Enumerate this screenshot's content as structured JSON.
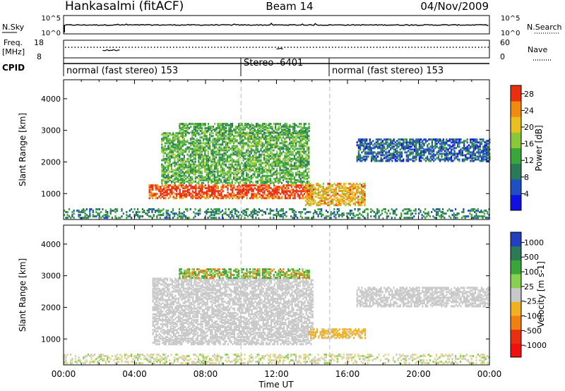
{
  "header": {
    "station": "Hankasalmi (fitACF)",
    "beam": "Beam 14",
    "date": "04/Nov/2009"
  },
  "noise_panel": {
    "left_label": "N.Sky",
    "right_label": "N.Search",
    "left_ticks": [
      "10^5",
      "10^0"
    ],
    "right_ticks": [
      "10^5",
      "10^0"
    ]
  },
  "freq_panel": {
    "left_label_line1": "Freq.",
    "left_label_line2": "[MHz]",
    "left_ticks": [
      "18",
      "8"
    ],
    "right_label": "Nave",
    "right_ticks": [
      "60",
      "0"
    ]
  },
  "cpid_panel": {
    "label": "CPID",
    "segments": [
      {
        "label": "normal (fast stereo) 153",
        "start_hour": 0,
        "end_hour": 10
      },
      {
        "label": "Stereo -6401",
        "start_hour": 10,
        "end_hour": 15
      },
      {
        "label": "normal (fast stereo) 153",
        "start_hour": 15,
        "end_hour": 24
      }
    ]
  },
  "chart_data": [
    {
      "type": "heatmap",
      "title": "Power",
      "xlabel": "Time UT",
      "ylabel": "Slant Range [km]",
      "colorbar_label": "Power [dB]",
      "x_ticks": [
        "00:00",
        "04:00",
        "08:00",
        "12:00",
        "16:00",
        "20:00",
        "00:00"
      ],
      "x_range_hours": [
        0,
        24
      ],
      "y_ticks": [
        1000,
        2000,
        3000,
        4000
      ],
      "ylim": [
        180,
        4600
      ],
      "colorbar_ticks": [
        4,
        8,
        12,
        16,
        20,
        24,
        28
      ],
      "colorbar_range": [
        0,
        30
      ],
      "colorbar_colors": [
        "#1010e0",
        "#1f4fc0",
        "#2a7a5a",
        "#3aa63a",
        "#8ac83a",
        "#e8c020",
        "#f08a10",
        "#e83010"
      ],
      "regions": [
        {
          "name": "near-range clutter",
          "t0": 0.0,
          "t1": 24.0,
          "r0": 200,
          "r1": 500,
          "level": 10
        },
        {
          "name": "main band",
          "t0": 4.8,
          "t1": 14.0,
          "r0": 820,
          "r1": 1250,
          "level": 23
        },
        {
          "name": "upper echoes",
          "t0": 5.5,
          "t1": 13.8,
          "r0": 1300,
          "r1": 2900,
          "level": 14
        },
        {
          "name": "top band",
          "t0": 6.5,
          "t1": 13.8,
          "r0": 2900,
          "r1": 3200,
          "level": 13
        },
        {
          "name": "afternoon band",
          "t0": 13.6,
          "t1": 17.0,
          "r0": 600,
          "r1": 1300,
          "level": 22
        },
        {
          "name": "evening band",
          "t0": 16.5,
          "t1": 24.0,
          "r0": 2000,
          "r1": 2700,
          "level": 7
        }
      ]
    },
    {
      "type": "heatmap",
      "title": "Velocity",
      "xlabel": "Time UT",
      "ylabel": "Slant Range [km]",
      "colorbar_label": "Velocity [m s-1]",
      "x_ticks": [
        "00:00",
        "04:00",
        "08:00",
        "12:00",
        "16:00",
        "20:00",
        "00:00"
      ],
      "x_range_hours": [
        0,
        24
      ],
      "y_ticks": [
        1000,
        2000,
        3000,
        4000
      ],
      "ylim": [
        180,
        4600
      ],
      "colorbar_ticks": [
        1000,
        500,
        100,
        25,
        -25,
        -100,
        -500,
        -1000
      ],
      "colorbar_colors": [
        "#2040c0",
        "#2a7a5a",
        "#3aa63a",
        "#88d050",
        "#c8c8c8",
        "#f0b020",
        "#f08010",
        "#e83010",
        "#f01010"
      ],
      "regions": [
        {
          "name": "ground scatter",
          "t0": 5.0,
          "t1": 14.0,
          "r0": 800,
          "r1": 2900,
          "velocity": 0
        },
        {
          "name": "top band",
          "t0": 6.5,
          "t1": 13.8,
          "r0": 2900,
          "r1": 3200,
          "velocity": 150
        },
        {
          "name": "afternoon band",
          "t0": 13.8,
          "t1": 17.0,
          "r0": 1000,
          "r1": 1300,
          "velocity": -80
        },
        {
          "name": "evening band",
          "t0": 16.5,
          "t1": 24.0,
          "r0": 2000,
          "r1": 2600,
          "velocity": 0
        },
        {
          "name": "near-range clutter",
          "t0": 0.0,
          "t1": 24.0,
          "r0": 200,
          "r1": 500,
          "velocity": 0
        }
      ]
    }
  ]
}
